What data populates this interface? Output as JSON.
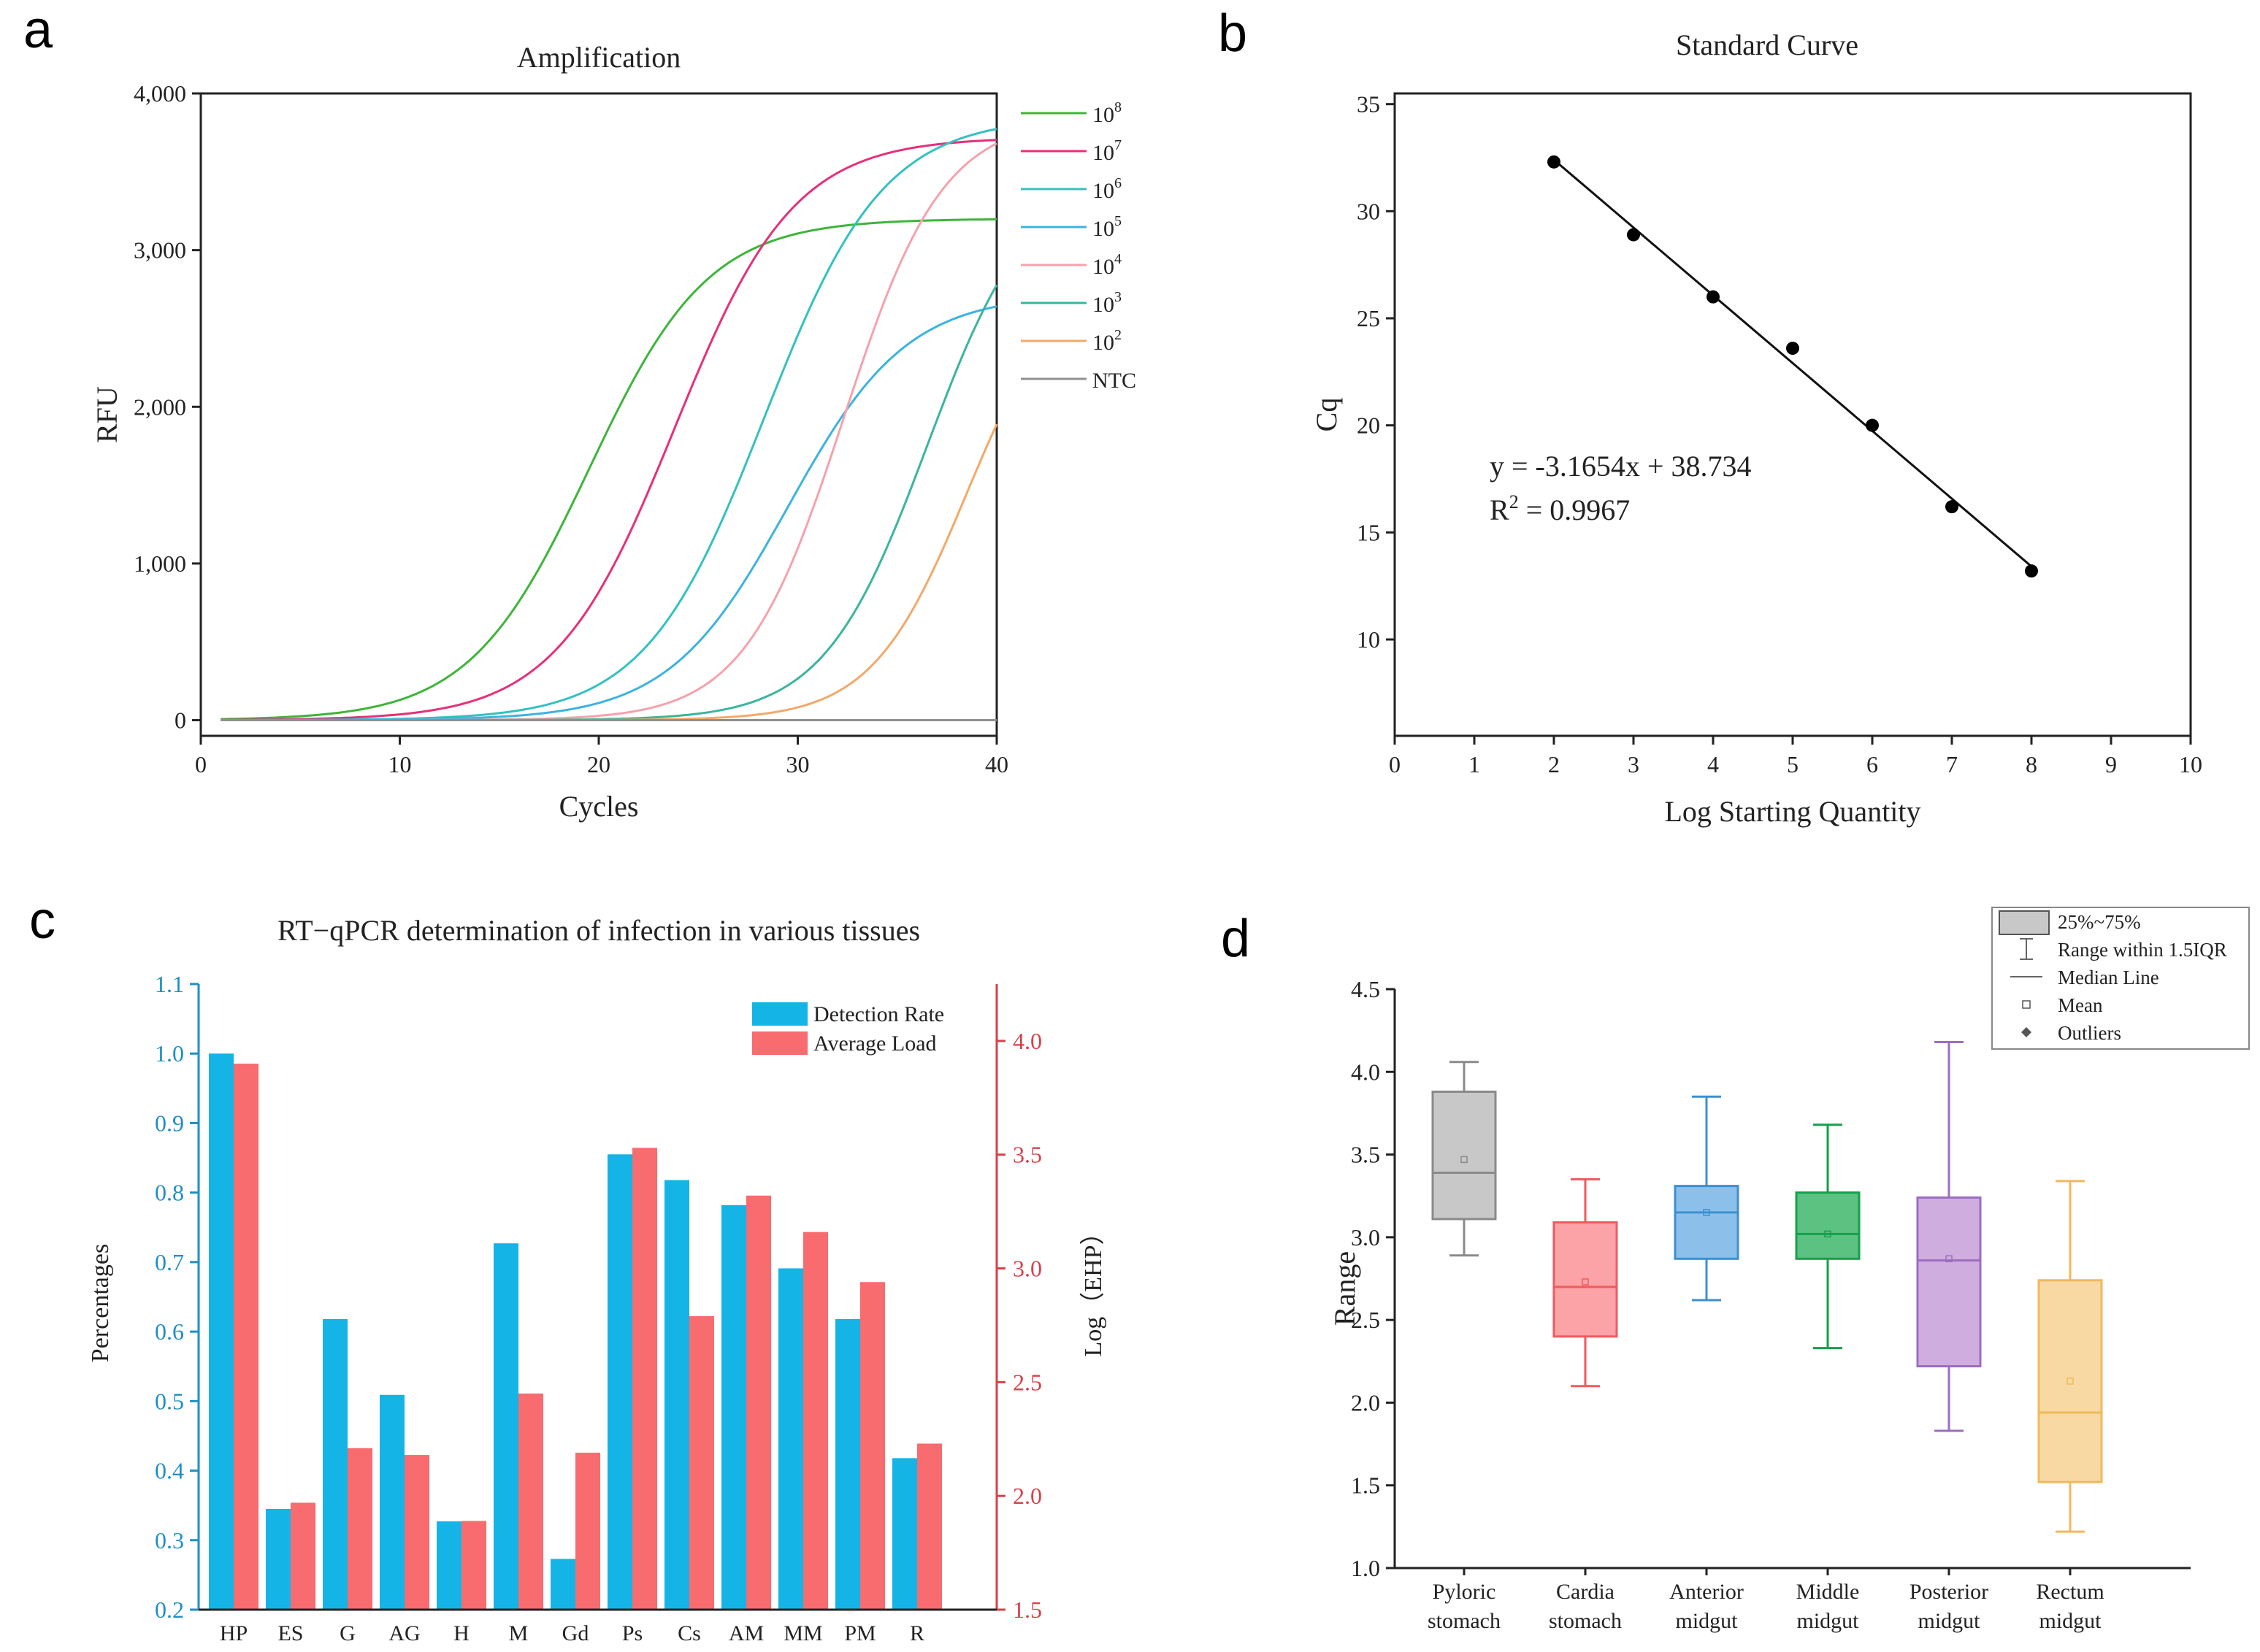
{
  "panels": {
    "a": "a",
    "b": "b",
    "c": "c",
    "d": "d"
  },
  "chart_data": [
    {
      "type": "line",
      "panel": "a",
      "title": "Amplification",
      "xlabel": "Cycles",
      "ylabel": "RFU",
      "xlim": [
        0,
        40
      ],
      "ylim": [
        -100,
        4000
      ],
      "xticks": [
        "0",
        "10",
        "20",
        "30",
        "40"
      ],
      "yticks": [
        "0",
        "1,000",
        "2,000",
        "3,000",
        "4,000"
      ],
      "series": [
        {
          "name": "10",
          "sup": "8",
          "color": "#3db53a",
          "baseline": 0,
          "amplitude": 3200,
          "midpoint": 19.5,
          "slope": 3.0
        },
        {
          "name": "10",
          "sup": "7",
          "color": "#e6307a",
          "baseline": 0,
          "amplitude": 3720,
          "midpoint": 23.8,
          "slope": 3.0
        },
        {
          "name": "10",
          "sup": "6",
          "color": "#33c1c0",
          "baseline": 0,
          "amplitude": 3850,
          "midpoint": 28.3,
          "slope": 3.0
        },
        {
          "name": "10",
          "sup": "5",
          "color": "#3cb3e0",
          "baseline": 0,
          "amplitude": 2720,
          "midpoint": 29.5,
          "slope": 3.0
        },
        {
          "name": "10",
          "sup": "4",
          "color": "#f5a2ad",
          "baseline": 0,
          "amplitude": 3850,
          "midpoint": 32.3,
          "slope": 2.5
        },
        {
          "name": "10",
          "sup": "3",
          "color": "#3ab59e",
          "baseline": 0,
          "amplitude": 3500,
          "midpoint": 36.5,
          "slope": 2.6
        },
        {
          "name": "10",
          "sup": "2",
          "color": "#f3a96a",
          "baseline": 0,
          "amplitude": 2900,
          "midpoint": 38.5,
          "slope": 2.4
        },
        {
          "name": "NTC",
          "sup": "",
          "color": "#909090",
          "baseline": 0,
          "amplitude": 0,
          "midpoint": 20,
          "slope": 3.0
        }
      ]
    },
    {
      "type": "scatter",
      "panel": "b",
      "title": "Standard Curve",
      "xlabel": "Log Starting Quantity",
      "ylabel": "Cq",
      "xlim": [
        0,
        10
      ],
      "ylim": [
        5.5,
        35.5
      ],
      "xticks": [
        "0",
        "1",
        "2",
        "3",
        "4",
        "5",
        "6",
        "7",
        "8",
        "9",
        "10"
      ],
      "yticks": [
        "10",
        "15",
        "20",
        "25",
        "30",
        "35"
      ],
      "x": [
        2,
        3,
        4,
        5,
        6,
        7,
        8
      ],
      "y": [
        32.3,
        28.9,
        26.0,
        23.6,
        20.0,
        16.2,
        13.2
      ],
      "fit": {
        "slope": -3.1654,
        "intercept": 38.734,
        "x_range": [
          2,
          8
        ]
      },
      "equation": "y = -3.1654x + 38.734",
      "r2_prefix": "R",
      "r2_sup": "2",
      "r2_value": " = 0.9967"
    },
    {
      "type": "bar",
      "panel": "c",
      "title": "RT−qPCR determination of infection in various tissues",
      "ylabel": "Percentages",
      "y2label": "Log（EHP）",
      "ylim": [
        0.2,
        1.1
      ],
      "y2lim": [
        1.5,
        4.25
      ],
      "yticks": [
        "0.2",
        "0.3",
        "0.4",
        "0.5",
        "0.6",
        "0.7",
        "0.8",
        "0.9",
        "1.0",
        "1.1"
      ],
      "y2ticks": [
        "1.5",
        "2.0",
        "2.5",
        "3.0",
        "3.5",
        "4.0"
      ],
      "categories": [
        "HP",
        "ES",
        "G",
        "AG",
        "H",
        "M",
        "Gd",
        "Ps",
        "Cs",
        "AM",
        "MM",
        "PM",
        "R"
      ],
      "series": [
        {
          "name": "Detection Rate",
          "axis": "left",
          "color": "#14b4e6",
          "values": [
            1.0,
            0.345,
            0.618,
            0.509,
            0.327,
            0.727,
            0.273,
            0.855,
            0.818,
            0.782,
            0.691,
            0.618,
            0.418
          ]
        },
        {
          "name": "Average Load",
          "axis": "right",
          "color": "#f86b6e",
          "values": [
            3.9,
            1.97,
            2.21,
            2.18,
            1.89,
            2.45,
            2.19,
            3.53,
            2.79,
            3.32,
            3.16,
            2.94,
            2.23
          ]
        }
      ]
    },
    {
      "type": "box",
      "panel": "d",
      "ylabel": "Range",
      "ylim": [
        1.0,
        4.5
      ],
      "yticks": [
        "1.0",
        "1.5",
        "2.0",
        "2.5",
        "3.0",
        "3.5",
        "4.0",
        "4.5"
      ],
      "categories": [
        {
          "line1": "Pyloric",
          "line2": "stomach"
        },
        {
          "line1": "Cardia",
          "line2": "stomach"
        },
        {
          "line1": "Anterior",
          "line2": "midgut"
        },
        {
          "line1": "Middle",
          "line2": "midgut"
        },
        {
          "line1": "Posterior",
          "line2": "midgut"
        },
        {
          "line1": "Rectum",
          "line2": "midgut"
        }
      ],
      "boxes": [
        {
          "min": 2.89,
          "q1": 3.11,
          "median": 3.39,
          "q3": 3.88,
          "max": 4.06,
          "mean": 3.47,
          "color": "#8a8a8a",
          "fill": "#c8c8c8"
        },
        {
          "min": 2.1,
          "q1": 2.4,
          "median": 2.7,
          "q3": 3.09,
          "max": 3.35,
          "mean": 2.73,
          "color": "#f05a5f",
          "fill": "#fba3a6"
        },
        {
          "min": 2.62,
          "q1": 2.87,
          "median": 3.15,
          "q3": 3.31,
          "max": 3.85,
          "mean": 3.15,
          "color": "#3d8fd1",
          "fill": "#8cc0ea"
        },
        {
          "min": 2.33,
          "q1": 2.87,
          "median": 3.02,
          "q3": 3.27,
          "max": 3.68,
          "mean": 3.02,
          "color": "#15a04a",
          "fill": "#5cc282"
        },
        {
          "min": 1.83,
          "q1": 2.22,
          "median": 2.86,
          "q3": 3.24,
          "max": 4.18,
          "mean": 2.87,
          "color": "#9b6dc0",
          "fill": "#cfaedf"
        },
        {
          "min": 1.22,
          "q1": 1.52,
          "median": 1.94,
          "q3": 2.74,
          "max": 3.34,
          "mean": 2.13,
          "color": "#f0b95a",
          "fill": "#f9d9a3"
        }
      ],
      "legend": [
        {
          "label": "25%~75%",
          "kind": "box"
        },
        {
          "label": "Range within 1.5IQR",
          "kind": "whisker"
        },
        {
          "label": "Median Line",
          "kind": "line"
        },
        {
          "label": "Mean",
          "kind": "square"
        },
        {
          "label": "Outliers",
          "kind": "diamond"
        }
      ]
    }
  ]
}
